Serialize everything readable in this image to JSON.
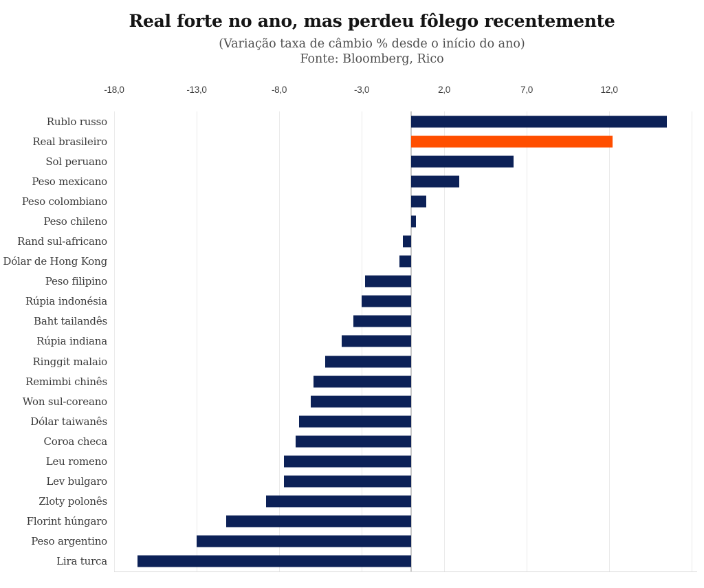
{
  "chart_data": {
    "type": "bar",
    "orientation": "horizontal",
    "title": "Real forte no ano, mas perdeu fôlego recentemente",
    "subtitle": "(Variação taxa de câmbio % desde o início do ano)",
    "source": "Fonte: Bloomberg, Rico",
    "xlabel": "",
    "ylabel": "",
    "categories": [
      "Rublo russo",
      "Real brasileiro",
      "Sol peruano",
      "Peso mexicano",
      "Peso colombiano",
      "Peso chileno",
      "Rand sul-africano",
      "Dólar de Hong Kong",
      "Peso filipino",
      "Rúpia indonésia",
      "Baht tailandês",
      "Rúpia indiana",
      "Ringgit malaio",
      "Remimbi chinês",
      "Won sul-coreano",
      "Dólar taiwanês",
      "Coroa checa",
      "Leu romeno",
      "Lev bulgaro",
      "Zloty polonês",
      "Florint húngaro",
      "Peso argentino",
      "Lira turca"
    ],
    "values": [
      15.5,
      12.2,
      6.2,
      2.9,
      0.9,
      0.3,
      -0.5,
      -0.7,
      -2.8,
      -3.0,
      -3.5,
      -4.2,
      -5.2,
      -5.9,
      -6.1,
      -6.8,
      -7.0,
      -7.7,
      -7.7,
      -8.8,
      -11.2,
      -13.0,
      -16.6
    ],
    "highlight_category": "Real brasileiro",
    "ticks": [
      {
        "x": -18,
        "label": "-18,0"
      },
      {
        "x": -13,
        "label": "-13,0"
      },
      {
        "x": -8,
        "label": "-8,0"
      },
      {
        "x": -3,
        "label": "-3,0"
      },
      {
        "x": 2,
        "label": "2,0"
      },
      {
        "x": 7,
        "label": "7,0"
      },
      {
        "x": 12,
        "label": "12,0"
      },
      {
        "x": 17,
        "label": ""
      }
    ],
    "xlim": [
      -18,
      17.33
    ],
    "grid": true,
    "legend": false,
    "colors": {
      "bar": "#0c2157",
      "highlight": "#ff4e00",
      "grid_line": "#eaeaea",
      "zero_line": "#c9c9c9",
      "axis_line": "#d8d8d8",
      "title_text": "#141414",
      "subtitle_text": "#4e4e4e",
      "label_text": "#3a3a3a",
      "tick_text": "#3d3d3d"
    }
  }
}
